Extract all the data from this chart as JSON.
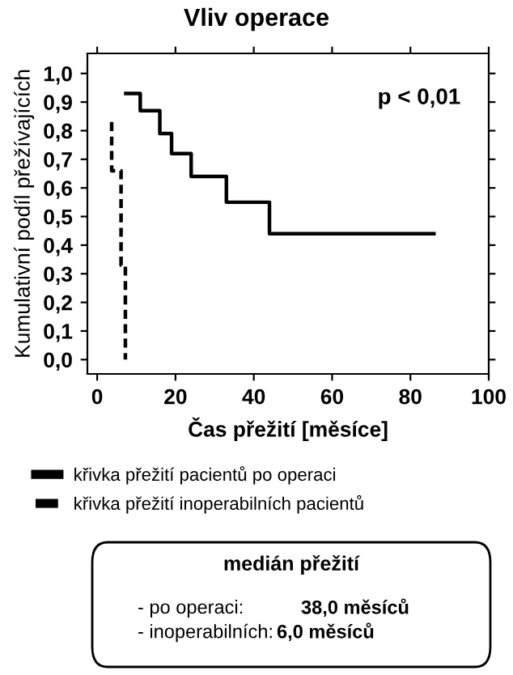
{
  "chart_data": {
    "type": "step",
    "title": "Vliv operace",
    "xlabel": "Čas přežití [měsíce]",
    "ylabel": "Kumulativní podíl přežívajících",
    "series": [
      {
        "name": "křivka přežití pacientů po operaci",
        "color": "#000000",
        "line_style": "solid",
        "x": [
          7.3,
          11,
          16,
          19,
          24,
          33,
          44,
          86
        ],
        "values": [
          0.93,
          0.87,
          0.79,
          0.72,
          0.64,
          0.55,
          0.44,
          0.44
        ]
      },
      {
        "name": "křivka přežití inoperabilních pacientů",
        "color": "#000000",
        "line_style": "dashed",
        "x": [
          3.7,
          3.7,
          6.1,
          7.2
        ],
        "values": [
          0.83,
          0.66,
          0.33,
          0.0
        ]
      }
    ],
    "xlim": [
      -2.5,
      100
    ],
    "ylim": [
      -0.05,
      1.07
    ],
    "xticks": [
      0,
      20,
      40,
      60,
      80,
      100
    ],
    "yticks": [
      {
        "value": 0,
        "label": "0,0"
      },
      {
        "value": 0.1,
        "label": "0,1"
      },
      {
        "value": 0.2,
        "label": "0,2"
      },
      {
        "value": 0.3,
        "label": "0,3"
      },
      {
        "value": 0.4,
        "label": "0,4"
      },
      {
        "value": 0.5,
        "label": "0,5"
      },
      {
        "value": 0.6,
        "label": "0,6"
      },
      {
        "value": 0.7,
        "label": "0,7"
      },
      {
        "value": 0.8,
        "label": "0,8"
      },
      {
        "value": 0.9,
        "label": "0,9"
      },
      {
        "value": 1.0,
        "label": "1,0"
      }
    ],
    "grid": false,
    "legend": "bottom",
    "marker": "none",
    "annotations": [
      "p < 0,01",
      "medián přežití",
      "- po operaci:",
      "38,0 měsíců",
      "- inoperabilních:",
      "6,0 měsíců"
    ]
  }
}
